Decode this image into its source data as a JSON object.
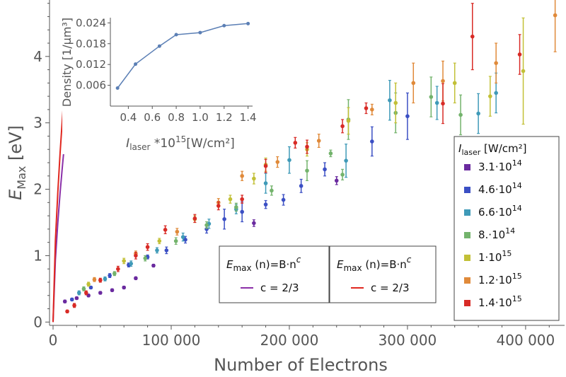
{
  "chart_data": [
    {
      "type": "scatter",
      "xlabel": "Number of Electrons",
      "ylabel_main": "E",
      "ylabel_sub": "Max",
      "ylabel_unit": " [eV]",
      "xlim": [
        -3000,
        433000
      ],
      "ylim": [
        -0.05,
        4.85
      ],
      "x_ticks": [
        0,
        100000,
        200000,
        300000,
        400000
      ],
      "x_tick_labels": [
        "0",
        "100 000",
        "200 000",
        "300 000",
        "400 000"
      ],
      "y_ticks": [
        0,
        1,
        2,
        3,
        4
      ],
      "y_tick_labels": [
        "0",
        "1",
        "2",
        "3",
        "4"
      ],
      "grid": false,
      "series_legend": {
        "title_main": "I",
        "title_sub": "laser",
        "title_unit": " [W/cm²]",
        "placement": "right"
      },
      "series": [
        {
          "base": "3.1·10",
          "exp": "14",
          "color": "#6a2a9f",
          "points": [
            [
              10000,
              0.31
            ],
            [
              20000,
              0.36
            ],
            [
              30000,
              0.4
            ],
            [
              40000,
              0.44
            ],
            [
              50000,
              0.48
            ],
            [
              60000,
              0.52
            ],
            [
              70000,
              0.66
            ],
            [
              85000,
              0.85
            ],
            [
              170000,
              1.49
            ],
            [
              240000,
              2.13
            ]
          ],
          "err": [
            0.02,
            0.02,
            0.02,
            0.02,
            0.02,
            0.02,
            0.02,
            0.02,
            0.05,
            0.06
          ]
        },
        {
          "base": "4.6·10",
          "exp": "14",
          "color": "#3b4fc4",
          "points": [
            [
              16000,
              0.34
            ],
            [
              32000,
              0.52
            ],
            [
              48000,
              0.7
            ],
            [
              64000,
              0.86
            ],
            [
              80000,
              0.98
            ],
            [
              96000,
              1.08
            ],
            [
              112000,
              1.24
            ],
            [
              130000,
              1.4
            ],
            [
              145000,
              1.55
            ],
            [
              160000,
              1.66
            ],
            [
              180000,
              1.77
            ],
            [
              195000,
              1.84
            ],
            [
              210000,
              2.05
            ],
            [
              230000,
              2.3
            ],
            [
              270000,
              2.72
            ],
            [
              300000,
              3.1
            ]
          ],
          "err": [
            0.02,
            0.02,
            0.03,
            0.03,
            0.03,
            0.05,
            0.05,
            0.06,
            0.15,
            0.15,
            0.06,
            0.08,
            0.1,
            0.1,
            0.22,
            0.35
          ]
        },
        {
          "base": "6.6·10",
          "exp": "14",
          "color": "#3f9ab8",
          "points": [
            [
              22000,
              0.44
            ],
            [
              44000,
              0.65
            ],
            [
              66000,
              0.88
            ],
            [
              88000,
              1.08
            ],
            [
              110000,
              1.28
            ],
            [
              132000,
              1.48
            ],
            [
              155000,
              1.7
            ],
            [
              180000,
              2.09
            ],
            [
              200000,
              2.44
            ],
            [
              248000,
              2.43
            ],
            [
              285000,
              3.34
            ],
            [
              325000,
              3.3
            ],
            [
              360000,
              3.14
            ],
            [
              375000,
              3.45
            ]
          ],
          "err": [
            0.03,
            0.03,
            0.04,
            0.04,
            0.06,
            0.07,
            0.07,
            0.15,
            0.2,
            0.25,
            0.3,
            0.25,
            0.3,
            0.3
          ]
        },
        {
          "base": "8.·10",
          "exp": "14",
          "color": "#73b36c",
          "points": [
            [
              26000,
              0.5
            ],
            [
              52000,
              0.73
            ],
            [
              78000,
              0.96
            ],
            [
              104000,
              1.22
            ],
            [
              130000,
              1.46
            ],
            [
              155000,
              1.73
            ],
            [
              185000,
              1.98
            ],
            [
              215000,
              2.28
            ],
            [
              235000,
              2.54
            ],
            [
              245000,
              2.22
            ],
            [
              250000,
              3.05
            ],
            [
              290000,
              3.15
            ],
            [
              320000,
              3.39
            ],
            [
              345000,
              3.12
            ]
          ],
          "err": [
            0.03,
            0.03,
            0.04,
            0.05,
            0.05,
            0.06,
            0.07,
            0.15,
            0.05,
            0.08,
            0.3,
            0.3,
            0.3,
            0.3
          ]
        },
        {
          "base": "1·10",
          "exp": "15",
          "color": "#c2c037",
          "points": [
            [
              30000,
              0.57
            ],
            [
              60000,
              0.92
            ],
            [
              90000,
              1.22
            ],
            [
              120000,
              1.55
            ],
            [
              150000,
              1.85
            ],
            [
              170000,
              2.16
            ],
            [
              180000,
              2.37
            ],
            [
              215000,
              2.6
            ],
            [
              250000,
              3.03
            ],
            [
              290000,
              3.3
            ],
            [
              340000,
              3.6
            ],
            [
              370000,
              3.4
            ],
            [
              398000,
              3.78
            ]
          ],
          "err": [
            0.03,
            0.04,
            0.04,
            0.05,
            0.06,
            0.08,
            0.1,
            0.1,
            0.2,
            0.3,
            0.3,
            0.3,
            0.8
          ]
        },
        {
          "base": "1.2·10",
          "exp": "15",
          "color": "#e08a3a",
          "points": [
            [
              35000,
              0.64
            ],
            [
              70000,
              1.03
            ],
            [
              105000,
              1.36
            ],
            [
              140000,
              1.8
            ],
            [
              160000,
              2.2
            ],
            [
              190000,
              2.41
            ],
            [
              225000,
              2.73
            ],
            [
              270000,
              3.2
            ],
            [
              305000,
              3.6
            ],
            [
              330000,
              3.63
            ],
            [
              375000,
              3.9
            ],
            [
              425000,
              4.62
            ]
          ],
          "err": [
            0.03,
            0.04,
            0.05,
            0.06,
            0.07,
            0.08,
            0.1,
            0.08,
            0.3,
            0.3,
            0.3,
            0.55
          ]
        },
        {
          "base": "1.4·10",
          "exp": "15",
          "color": "#d82b26",
          "points": [
            [
              12000,
              0.16
            ],
            [
              18000,
              0.25
            ],
            [
              28000,
              0.44
            ],
            [
              40000,
              0.63
            ],
            [
              55000,
              0.8
            ],
            [
              70000,
              1.0
            ],
            [
              80000,
              1.13
            ],
            [
              95000,
              1.39
            ],
            [
              120000,
              1.56
            ],
            [
              140000,
              1.75
            ],
            [
              160000,
              1.85
            ],
            [
              180000,
              2.35
            ],
            [
              205000,
              2.7
            ],
            [
              215000,
              2.64
            ],
            [
              245000,
              2.95
            ],
            [
              265000,
              3.22
            ],
            [
              330000,
              3.29
            ],
            [
              355000,
              4.3
            ],
            [
              395000,
              4.03
            ]
          ],
          "err": [
            0.02,
            0.03,
            0.03,
            0.03,
            0.04,
            0.05,
            0.05,
            0.06,
            0.06,
            0.06,
            0.06,
            0.1,
            0.08,
            0.1,
            0.1,
            0.08,
            0.3,
            0.5,
            0.3
          ]
        }
      ],
      "fits": [
        {
          "B": 0.00592,
          "c": 0.6667,
          "color": "#8b2fa8",
          "title": "E",
          "title_sub": "max",
          "title_rest": " (n)=B·n",
          "title_sup": "c",
          "entry": "c = 2/3"
        },
        {
          "B": 0.00774,
          "c": 0.6667,
          "color": "#e0271f",
          "title": "E",
          "title_sub": "max",
          "title_rest": " (n)=B·n",
          "title_sup": "c",
          "entry": "c = 2/3"
        }
      ]
    },
    {
      "type": "line",
      "xlabel_main": "I",
      "xlabel_sub": "laser",
      "xlabel_rest": " *10",
      "xlabel_sup": "15",
      "xlabel_unit": "[W/cm²]",
      "ylabel": "Density [1/μm³]",
      "x": [
        0.31,
        0.46,
        0.66,
        0.8,
        1.0,
        1.2,
        1.4
      ],
      "y": [
        0.0052,
        0.0121,
        0.0173,
        0.0206,
        0.0212,
        0.0232,
        0.0238
      ],
      "xlim": [
        0.25,
        1.42
      ],
      "ylim": [
        0.0,
        0.0255
      ],
      "x_ticks": [
        0.4,
        0.6,
        0.8,
        1.0,
        1.2,
        1.4
      ],
      "x_tick_labels": [
        "0.4",
        "0.6",
        "0.8",
        "1.0",
        "1.2",
        "1.4"
      ],
      "y_ticks": [
        0.006,
        0.012,
        0.018,
        0.024
      ],
      "y_tick_labels": [
        "0.006",
        "0.012",
        "0.018",
        "0.024"
      ],
      "color": "#5b7fb5"
    }
  ]
}
